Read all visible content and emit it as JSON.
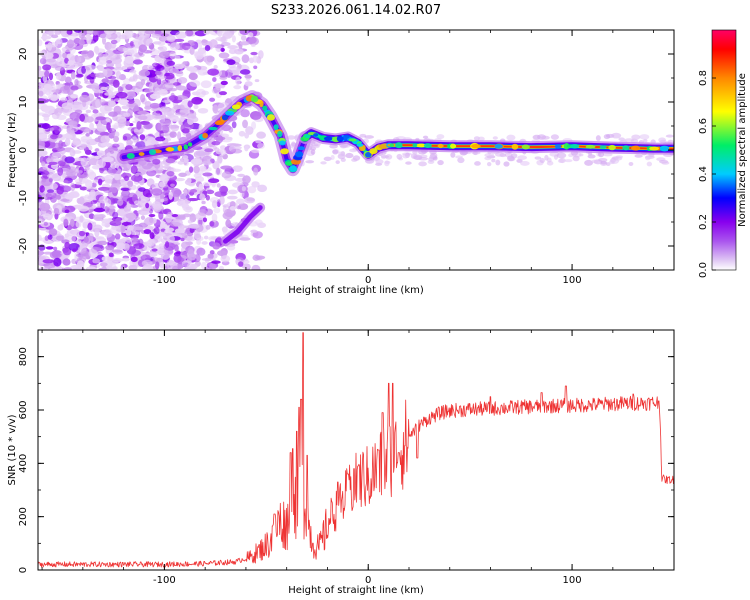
{
  "figure_title": "S233.2026.061.14.02.R07",
  "chart_data": [
    {
      "type": "heatmap",
      "title": "S233.2026.061.14.02.R07",
      "xlabel": "Height of straight line (km)",
      "ylabel": "Frequency (Hz)",
      "xlim": [
        -162,
        150
      ],
      "ylim": [
        -25,
        25
      ],
      "x_ticks": [
        -100,
        0,
        100
      ],
      "y_ticks": [
        -20,
        -10,
        0,
        10,
        20
      ],
      "colorbar": {
        "label": "Normalized spectral amplitude",
        "range": [
          0,
          1
        ],
        "ticks": [
          0.0,
          0.2,
          0.4,
          0.6,
          0.8
        ],
        "colors": [
          "#ffffff",
          "#cc99ee",
          "#8800ee",
          "#0000ff",
          "#00ccff",
          "#00ee66",
          "#ffff00",
          "#ff8800",
          "#ff0000"
        ]
      },
      "ridge": [
        [
          -120,
          -1.5
        ],
        [
          -100,
          0
        ],
        [
          -90,
          0.5
        ],
        [
          -80,
          3
        ],
        [
          -72,
          6
        ],
        [
          -66,
          8.5
        ],
        [
          -62,
          10
        ],
        [
          -57,
          11
        ],
        [
          -52,
          9.5
        ],
        [
          -48,
          7
        ],
        [
          -43,
          3
        ],
        [
          -40,
          -2
        ],
        [
          -37,
          -4
        ],
        [
          -34,
          -1
        ],
        [
          -31,
          2.5
        ],
        [
          -28,
          3.5
        ],
        [
          -22,
          2.5
        ],
        [
          -16,
          2.2
        ],
        [
          -10,
          2.6
        ],
        [
          -5,
          1.5
        ],
        [
          0,
          -1
        ],
        [
          5,
          0.5
        ],
        [
          10,
          1
        ],
        [
          20,
          1
        ],
        [
          40,
          0.8
        ],
        [
          60,
          0.8
        ],
        [
          80,
          0.6
        ],
        [
          100,
          0.8
        ],
        [
          120,
          0.5
        ],
        [
          140,
          0.3
        ],
        [
          150,
          0.3
        ]
      ],
      "lower_branch": [
        [
          -70,
          -19
        ],
        [
          -64,
          -17
        ],
        [
          -58,
          -14
        ],
        [
          -53,
          -12
        ]
      ]
    },
    {
      "type": "line",
      "xlabel": "Height of straight line (km)",
      "ylabel": "SNR (10 * v/v)",
      "xlim": [
        -162,
        150
      ],
      "ylim": [
        0,
        900
      ],
      "x_ticks": [
        -100,
        0,
        100
      ],
      "y_ticks": [
        0,
        200,
        400,
        600,
        800
      ],
      "color": "#ee3333",
      "envelope": [
        [
          -162,
          22
        ],
        [
          -140,
          22
        ],
        [
          -120,
          22
        ],
        [
          -100,
          22
        ],
        [
          -80,
          25
        ],
        [
          -65,
          32
        ],
        [
          -58,
          50
        ],
        [
          -52,
          85
        ],
        [
          -47,
          120
        ],
        [
          -44,
          190
        ],
        [
          -40,
          180
        ],
        [
          -37,
          240
        ],
        [
          -35,
          290
        ],
        [
          -33,
          330
        ],
        [
          -31,
          270
        ],
        [
          -29,
          170
        ],
        [
          -27,
          100
        ],
        [
          -24,
          90
        ],
        [
          -21,
          150
        ],
        [
          -18,
          215
        ],
        [
          -14,
          245
        ],
        [
          -10,
          300
        ],
        [
          -6,
          335
        ],
        [
          -2,
          360
        ],
        [
          0,
          355
        ],
        [
          2,
          375
        ],
        [
          5,
          395
        ],
        [
          8,
          420
        ],
        [
          12,
          445
        ],
        [
          16,
          475
        ],
        [
          20,
          505
        ],
        [
          25,
          545
        ],
        [
          30,
          572
        ],
        [
          35,
          590
        ],
        [
          40,
          600
        ],
        [
          50,
          605
        ],
        [
          60,
          608
        ],
        [
          70,
          612
        ],
        [
          80,
          615
        ],
        [
          90,
          618
        ],
        [
          100,
          620
        ],
        [
          110,
          622
        ],
        [
          120,
          626
        ],
        [
          130,
          628
        ],
        [
          140,
          630
        ],
        [
          143,
          632
        ],
        [
          144,
          345
        ],
        [
          146,
          340
        ],
        [
          150,
          340
        ]
      ],
      "peaks": [
        [
          -47,
          165
        ],
        [
          -46,
          210
        ],
        [
          -38,
          440
        ],
        [
          -37,
          455
        ],
        [
          -35,
          520
        ],
        [
          -34,
          610
        ],
        [
          -33,
          640
        ],
        [
          -32,
          890
        ],
        [
          -30,
          430
        ],
        [
          -15,
          330
        ],
        [
          -10,
          360
        ],
        [
          -7,
          380
        ],
        [
          -5,
          390
        ],
        [
          5,
          450
        ],
        [
          7,
          590
        ],
        [
          10,
          700
        ],
        [
          12,
          700
        ],
        [
          15,
          440
        ],
        [
          24,
          420
        ],
        [
          60,
          650
        ],
        [
          85,
          665
        ],
        [
          97,
          690
        ],
        [
          130,
          660
        ]
      ]
    }
  ]
}
